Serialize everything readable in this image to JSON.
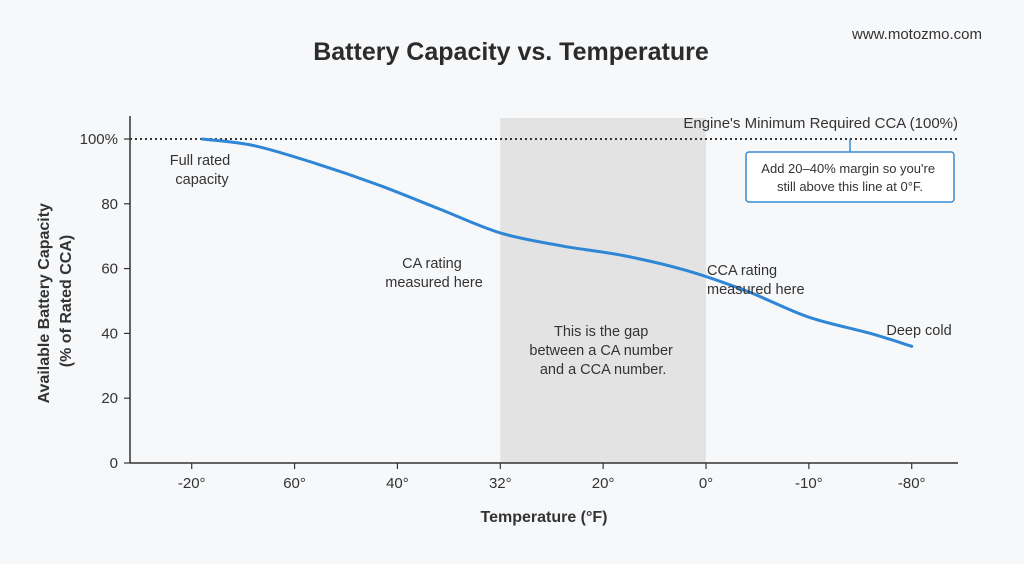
{
  "brand": "www.motozmo.com",
  "colors": {
    "line": "#2f86d6",
    "shade": "#e3e3e3",
    "reference": "#333333",
    "callout_border": "#3a8bd1",
    "axis": "#333333"
  },
  "chart_data": {
    "type": "line",
    "title": "Battery Capacity vs. Temperature",
    "xlabel": "Temperature (°F)",
    "ylabel_lines": [
      "Available Battery Capacity",
      "(% of Rated CCA)"
    ],
    "categories": [
      "-20°",
      "60°",
      "40°",
      "32°",
      "20°",
      "0°",
      "-10°",
      "-80°"
    ],
    "ylim": [
      0,
      100
    ],
    "yticks": [
      "0",
      "20",
      "40",
      "60",
      "80",
      "100%"
    ],
    "grid": false,
    "series": [
      {
        "x": [
          0.1,
          0.6,
          1.2,
          1.8,
          2.4,
          3.0,
          3.6,
          4.2,
          4.8,
          5.4,
          6.0,
          6.6,
          7.0
        ],
        "y": [
          100,
          98,
          92.5,
          86,
          78.5,
          71,
          67,
          64,
          59.5,
          53,
          45,
          40,
          36
        ]
      }
    ],
    "shaded_region": {
      "x_from": 3,
      "x_to": 5,
      "label_lines": [
        "This is the gap",
        "between a CA number",
        "and a CCA number."
      ]
    },
    "reference_line": {
      "y": 100,
      "label": "Engine's Minimum Required CCA (100%)"
    },
    "callout": [
      "Add 20–40% margin so you're",
      "still above this line at 0°F."
    ],
    "annotations": [
      {
        "lines": [
          "Full rated",
          "capacity"
        ]
      },
      {
        "lines": [
          "CA rating",
          "measured here"
        ]
      },
      {
        "lines": [
          "CCA rating",
          "measured here"
        ]
      },
      {
        "lines": [
          "Deep cold"
        ]
      }
    ]
  }
}
